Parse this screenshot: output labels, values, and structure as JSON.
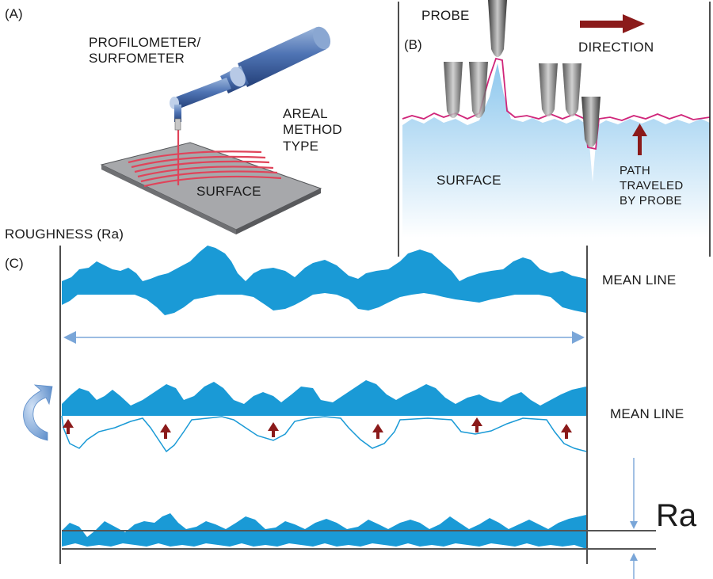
{
  "panel_a": {
    "label": "(A)",
    "instrument_label": "PROFILOMETER/\nSURFOMETER",
    "method_label": "AREAL\nMETHOD\nTYPE",
    "surface_label": "SURFACE"
  },
  "panel_b": {
    "label": "(B)",
    "probe_label": "PROBE",
    "direction_label": "DIRECTION",
    "surface_label": "SURFACE",
    "path_label": "PATH\nTRAVELED\nBY PROBE"
  },
  "panel_c": {
    "label": "(C)",
    "title": "ROUGHNESS (Ra)",
    "mean_line_label_1": "MEAN LINE",
    "mean_line_label_2": "MEAN LINE",
    "ra_label": "Ra"
  },
  "colors": {
    "profile_blue": "#1a9ad6",
    "light_blue": "#cfe8f7",
    "dark_red": "#8b1a1a",
    "path_pink": "#d0267a",
    "red_scan": "#e0445a",
    "arrow_blue": "#7aa6d8"
  }
}
